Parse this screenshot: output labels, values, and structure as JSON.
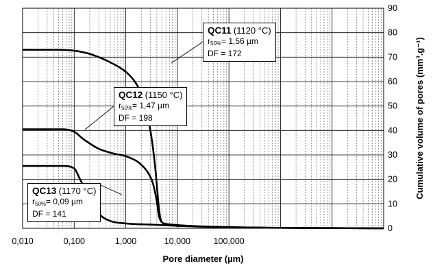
{
  "chart_data": {
    "type": "line",
    "x_scale": "log",
    "xlim": [
      0.01,
      100000
    ],
    "ylim": [
      0,
      90
    ],
    "xlabel": "Pore diameter (µm)",
    "ylabel": "Cumulative volume of pores (mm³.g⁻¹)",
    "x_ticks": [
      "0,010",
      "0,100",
      "1,000",
      "10,000",
      "100,000"
    ],
    "y_ticks": [
      "0",
      "10",
      "20",
      "30",
      "40",
      "50",
      "60",
      "70",
      "80",
      "90"
    ],
    "grid": true,
    "series": [
      {
        "name": "QC11",
        "x": [
          0.01,
          0.05,
          0.15,
          0.3,
          0.6,
          1.0,
          1.5,
          2.0,
          2.5,
          3.0,
          3.5,
          3.8,
          4.1,
          4.4,
          4.7,
          5.0,
          6.0,
          10,
          50,
          100000
        ],
        "y": [
          73,
          73,
          72,
          70,
          67,
          64,
          60,
          55,
          48,
          40,
          30,
          23,
          15,
          8,
          4,
          2.5,
          1.8,
          1.3,
          0.6,
          0
        ]
      },
      {
        "name": "QC12",
        "x": [
          0.01,
          0.06,
          0.1,
          0.15,
          0.3,
          0.6,
          1.0,
          2.0,
          3.0,
          3.5,
          4.0,
          4.4,
          5.0,
          6.0,
          10,
          50,
          100000
        ],
        "y": [
          40.5,
          40.5,
          39.5,
          36.5,
          32.5,
          30.5,
          29.5,
          26,
          21,
          17,
          11,
          5,
          2.5,
          1.8,
          1.3,
          0.6,
          0
        ]
      },
      {
        "name": "QC13",
        "x": [
          0.01,
          0.06,
          0.1,
          0.13,
          0.2,
          0.3,
          0.5,
          1.0,
          3.0,
          10,
          50,
          100000
        ],
        "y": [
          25.5,
          25.5,
          24.5,
          20,
          12,
          6,
          3,
          2,
          1.5,
          1.0,
          0.5,
          0
        ]
      }
    ],
    "annotations": [
      {
        "name": "QC11",
        "temp": "(1120 °C)",
        "r50_prefix": "r",
        "r50_sub": "50%",
        "r50_value": "= 1,56 µm",
        "df": "DF = 172"
      },
      {
        "name": "QC12",
        "temp": "(1150 °C)",
        "r50_prefix": "r",
        "r50_sub": "50%",
        "r50_value": "= 1,47 µm",
        "df": "DF = 198"
      },
      {
        "name": "QC13",
        "temp": "(1170 °C)",
        "r50_prefix": "r",
        "r50_sub": "50%",
        "r50_value": "= 0,09 µm",
        "df": "DF = 141"
      }
    ]
  }
}
